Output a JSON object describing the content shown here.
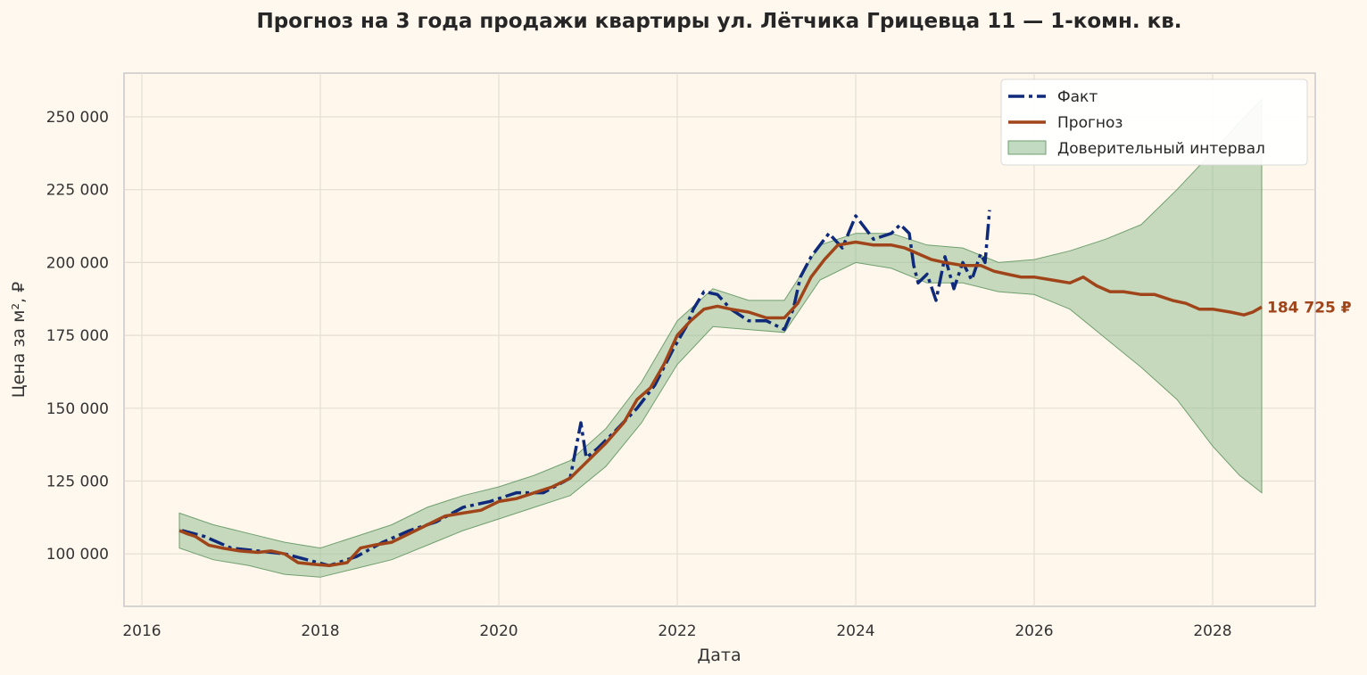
{
  "chart_data": {
    "type": "line",
    "title": "Прогноз на 3 года продажи квартиры  ул. Лётчика Грицевца 11 — 1-комн. кв.",
    "xlabel": "Дата",
    "ylabel": "Цена за м², ₽",
    "xlim": [
      2015.8,
      2029.15
    ],
    "ylim": [
      82000,
      265000
    ],
    "x_ticks": [
      2016,
      2018,
      2020,
      2022,
      2024,
      2026,
      2028
    ],
    "x_tick_labels": [
      "2016",
      "2018",
      "2020",
      "2022",
      "2024",
      "2026",
      "2028"
    ],
    "y_ticks": [
      100000,
      125000,
      150000,
      175000,
      200000,
      225000,
      250000
    ],
    "y_tick_labels": [
      "100 000",
      "125 000",
      "150 000",
      "175 000",
      "200 000",
      "225 000",
      "250 000"
    ],
    "grid": true,
    "legend_position": "top-right",
    "end_label": "184 725 ₽",
    "series": [
      {
        "name": "Факт",
        "color": "#0f2a7a",
        "style": "dash-dot",
        "x": [
          2016.45,
          2016.7,
          2017.0,
          2017.3,
          2017.6,
          2017.85,
          2018.1,
          2018.4,
          2018.7,
          2019.0,
          2019.3,
          2019.6,
          2019.9,
          2020.2,
          2020.5,
          2020.8,
          2020.92,
          2020.98,
          2021.1,
          2021.3,
          2021.55,
          2021.75,
          2021.95,
          2022.1,
          2022.18,
          2022.3,
          2022.45,
          2022.6,
          2022.8,
          2023.0,
          2023.2,
          2023.3,
          2023.38,
          2023.5,
          2023.7,
          2023.85,
          2024.0,
          2024.2,
          2024.4,
          2024.5,
          2024.6,
          2024.65,
          2024.7,
          2024.8,
          2024.9,
          2025.0,
          2025.1,
          2025.2,
          2025.3,
          2025.4,
          2025.45,
          2025.5
        ],
        "y": [
          108000,
          106000,
          102000,
          101000,
          100000,
          98000,
          96000,
          99000,
          104000,
          108000,
          111000,
          116000,
          118000,
          121000,
          121000,
          126000,
          145000,
          133000,
          136000,
          142000,
          150000,
          158000,
          170000,
          178000,
          184000,
          190000,
          189000,
          184000,
          180000,
          180000,
          177000,
          184000,
          195000,
          202000,
          210000,
          205000,
          216000,
          208000,
          210000,
          213000,
          210000,
          199000,
          193000,
          196000,
          187000,
          202000,
          191000,
          200000,
          194000,
          203000,
          200000,
          218000
        ]
      },
      {
        "name": "Прогноз",
        "color": "#a0441a",
        "style": "solid",
        "x": [
          2016.42,
          2016.5,
          2016.6,
          2016.75,
          2016.9,
          2017.1,
          2017.3,
          2017.45,
          2017.6,
          2017.75,
          2017.9,
          2018.1,
          2018.3,
          2018.45,
          2018.6,
          2018.8,
          2019.0,
          2019.2,
          2019.4,
          2019.6,
          2019.8,
          2020.0,
          2020.2,
          2020.4,
          2020.6,
          2020.8,
          2021.0,
          2021.2,
          2021.4,
          2021.55,
          2021.7,
          2021.85,
          2022.0,
          2022.15,
          2022.3,
          2022.45,
          2022.6,
          2022.8,
          2023.0,
          2023.2,
          2023.35,
          2023.5,
          2023.65,
          2023.8,
          2024.0,
          2024.2,
          2024.4,
          2024.55,
          2024.7,
          2024.85,
          2025.0,
          2025.2,
          2025.4,
          2025.55,
          2025.7,
          2025.85,
          2026.0,
          2026.2,
          2026.4,
          2026.55,
          2026.7,
          2026.85,
          2027.0,
          2027.2,
          2027.35,
          2027.55,
          2027.7,
          2027.85,
          2028.0,
          2028.2,
          2028.35,
          2028.45,
          2028.55
        ],
        "y": [
          108000,
          107000,
          106000,
          103000,
          102000,
          101000,
          100500,
          101000,
          100000,
          97000,
          96500,
          96000,
          97000,
          102000,
          103000,
          104000,
          107000,
          110000,
          113000,
          114000,
          115000,
          118000,
          119000,
          121000,
          123000,
          126000,
          132000,
          138000,
          145000,
          153000,
          157000,
          165000,
          175000,
          180000,
          184000,
          185000,
          184000,
          183000,
          181000,
          181000,
          186000,
          195000,
          201000,
          206000,
          207000,
          206000,
          206000,
          205000,
          203000,
          201000,
          200000,
          199000,
          199000,
          197000,
          196000,
          195000,
          195000,
          194000,
          193000,
          195000,
          192000,
          190000,
          190000,
          189000,
          189000,
          187000,
          186000,
          184000,
          184000,
          183000,
          182000,
          183000,
          184725
        ]
      }
    ],
    "confidence_interval": {
      "name": "Доверительный интервал",
      "color": "#8fbc8f",
      "x": [
        2016.42,
        2016.8,
        2017.2,
        2017.6,
        2018.0,
        2018.4,
        2018.8,
        2019.2,
        2019.6,
        2020.0,
        2020.4,
        2020.8,
        2021.2,
        2021.6,
        2022.0,
        2022.4,
        2022.8,
        2023.2,
        2023.6,
        2024.0,
        2024.4,
        2024.8,
        2025.2,
        2025.6,
        2026.0,
        2026.4,
        2026.8,
        2027.2,
        2027.6,
        2028.0,
        2028.3,
        2028.55
      ],
      "lower": [
        102000,
        98000,
        96000,
        93000,
        92000,
        95000,
        98000,
        103000,
        108000,
        112000,
        116000,
        120000,
        130000,
        145000,
        165000,
        178000,
        177000,
        176000,
        194000,
        200000,
        198000,
        193000,
        193000,
        190000,
        189000,
        184000,
        174000,
        164000,
        153000,
        137000,
        127000,
        121000
      ],
      "upper": [
        114000,
        110000,
        107000,
        104000,
        102000,
        106000,
        110000,
        116000,
        120000,
        123000,
        127000,
        132000,
        143000,
        159000,
        180000,
        191000,
        187000,
        187000,
        206000,
        210000,
        210000,
        206000,
        205000,
        200000,
        201000,
        204000,
        208000,
        213000,
        225000,
        238000,
        248000,
        256000
      ]
    }
  }
}
